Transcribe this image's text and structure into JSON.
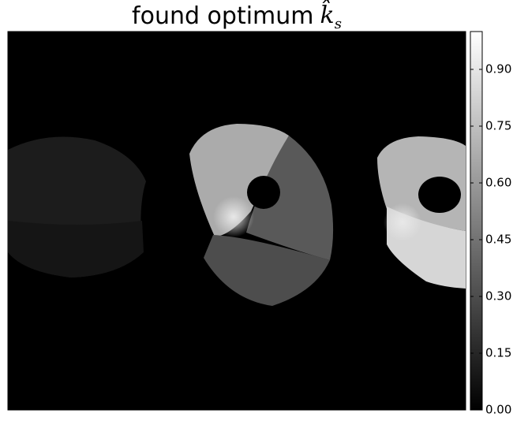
{
  "chart_data": {
    "type": "image",
    "title": "found optimum",
    "title_symbol": "k̂",
    "title_subscript": "s",
    "colormap": "gray",
    "clim": [
      0,
      1
    ],
    "cticks": [
      {
        "value": 0,
        "label": "0.00"
      },
      {
        "value": 0.15,
        "label": "0.15"
      },
      {
        "value": 0.3,
        "label": "0.30"
      },
      {
        "value": 0.45,
        "label": "0.45"
      },
      {
        "value": 0.6,
        "label": "0.60"
      },
      {
        "value": 0.75,
        "label": "0.75"
      },
      {
        "value": 0.9,
        "label": "0.90"
      }
    ]
  }
}
